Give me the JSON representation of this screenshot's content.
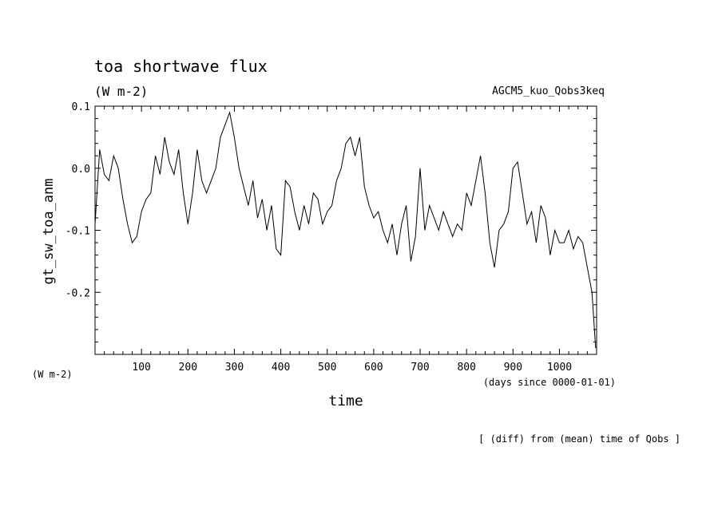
{
  "chart_data": {
    "type": "line",
    "title": "toa shortwave flux",
    "subtitle": "(W m-2)",
    "experiment": "AGCM5_kuo_Qobs3keq",
    "ylabel": "gt_sw_toa_anm",
    "yunit": "(W m-2)",
    "xlabel": "time",
    "xunit": "(days since 0000-01-01)",
    "footnote": "[ (diff) from (mean) time of Qobs ]",
    "xlim": [
      0,
      1080
    ],
    "ylim": [
      -0.3,
      0.1
    ],
    "xticks": [
      100,
      200,
      300,
      400,
      500,
      600,
      700,
      800,
      900,
      1000
    ],
    "xtick_labels": [
      "100",
      "200",
      "300",
      "400",
      "500",
      "600",
      "700",
      "800",
      "900",
      "1000"
    ],
    "yticks": [
      -0.2,
      -0.1,
      0.0,
      0.1
    ],
    "ytick_labels": [
      "-0.2",
      "-0.1",
      "0.0",
      "0.1"
    ],
    "grid": false,
    "series": [
      {
        "name": "",
        "x": [
          0,
          10,
          20,
          30,
          40,
          50,
          60,
          70,
          80,
          90,
          100,
          110,
          120,
          130,
          140,
          150,
          160,
          170,
          180,
          190,
          200,
          210,
          220,
          230,
          240,
          250,
          260,
          270,
          280,
          290,
          300,
          310,
          320,
          330,
          340,
          350,
          360,
          370,
          380,
          390,
          400,
          410,
          420,
          430,
          440,
          450,
          460,
          470,
          480,
          490,
          500,
          510,
          520,
          530,
          540,
          550,
          560,
          570,
          580,
          590,
          600,
          610,
          620,
          630,
          640,
          650,
          660,
          670,
          680,
          690,
          700,
          710,
          720,
          730,
          740,
          750,
          760,
          770,
          780,
          790,
          800,
          810,
          820,
          830,
          840,
          850,
          860,
          870,
          880,
          890,
          900,
          910,
          920,
          930,
          940,
          950,
          960,
          970,
          980,
          990,
          1000,
          1010,
          1020,
          1030,
          1040,
          1050,
          1060,
          1070,
          1078
        ],
        "values": [
          -0.09,
          0.03,
          -0.01,
          -0.02,
          0.02,
          0.0,
          -0.05,
          -0.09,
          -0.12,
          -0.11,
          -0.07,
          -0.05,
          -0.04,
          0.02,
          -0.01,
          0.05,
          0.01,
          -0.01,
          0.03,
          -0.04,
          -0.09,
          -0.04,
          0.03,
          -0.02,
          -0.04,
          -0.02,
          0.0,
          0.05,
          0.07,
          0.09,
          0.05,
          0.0,
          -0.03,
          -0.06,
          -0.02,
          -0.08,
          -0.05,
          -0.1,
          -0.06,
          -0.13,
          -0.14,
          -0.02,
          -0.03,
          -0.07,
          -0.1,
          -0.06,
          -0.09,
          -0.04,
          -0.05,
          -0.09,
          -0.07,
          -0.06,
          -0.02,
          0.0,
          0.04,
          0.05,
          0.02,
          0.05,
          -0.03,
          -0.06,
          -0.08,
          -0.07,
          -0.1,
          -0.12,
          -0.09,
          -0.14,
          -0.09,
          -0.06,
          -0.15,
          -0.11,
          0.0,
          -0.1,
          -0.06,
          -0.08,
          -0.1,
          -0.07,
          -0.09,
          -0.11,
          -0.09,
          -0.1,
          -0.04,
          -0.06,
          -0.02,
          0.02,
          -0.04,
          -0.12,
          -0.16,
          -0.1,
          -0.09,
          -0.07,
          0.0,
          0.01,
          -0.04,
          -0.09,
          -0.07,
          -0.12,
          -0.06,
          -0.08,
          -0.14,
          -0.1,
          -0.12,
          -0.12,
          -0.1,
          -0.13,
          -0.11,
          -0.12,
          -0.16,
          -0.2,
          -0.29
        ]
      }
    ]
  }
}
